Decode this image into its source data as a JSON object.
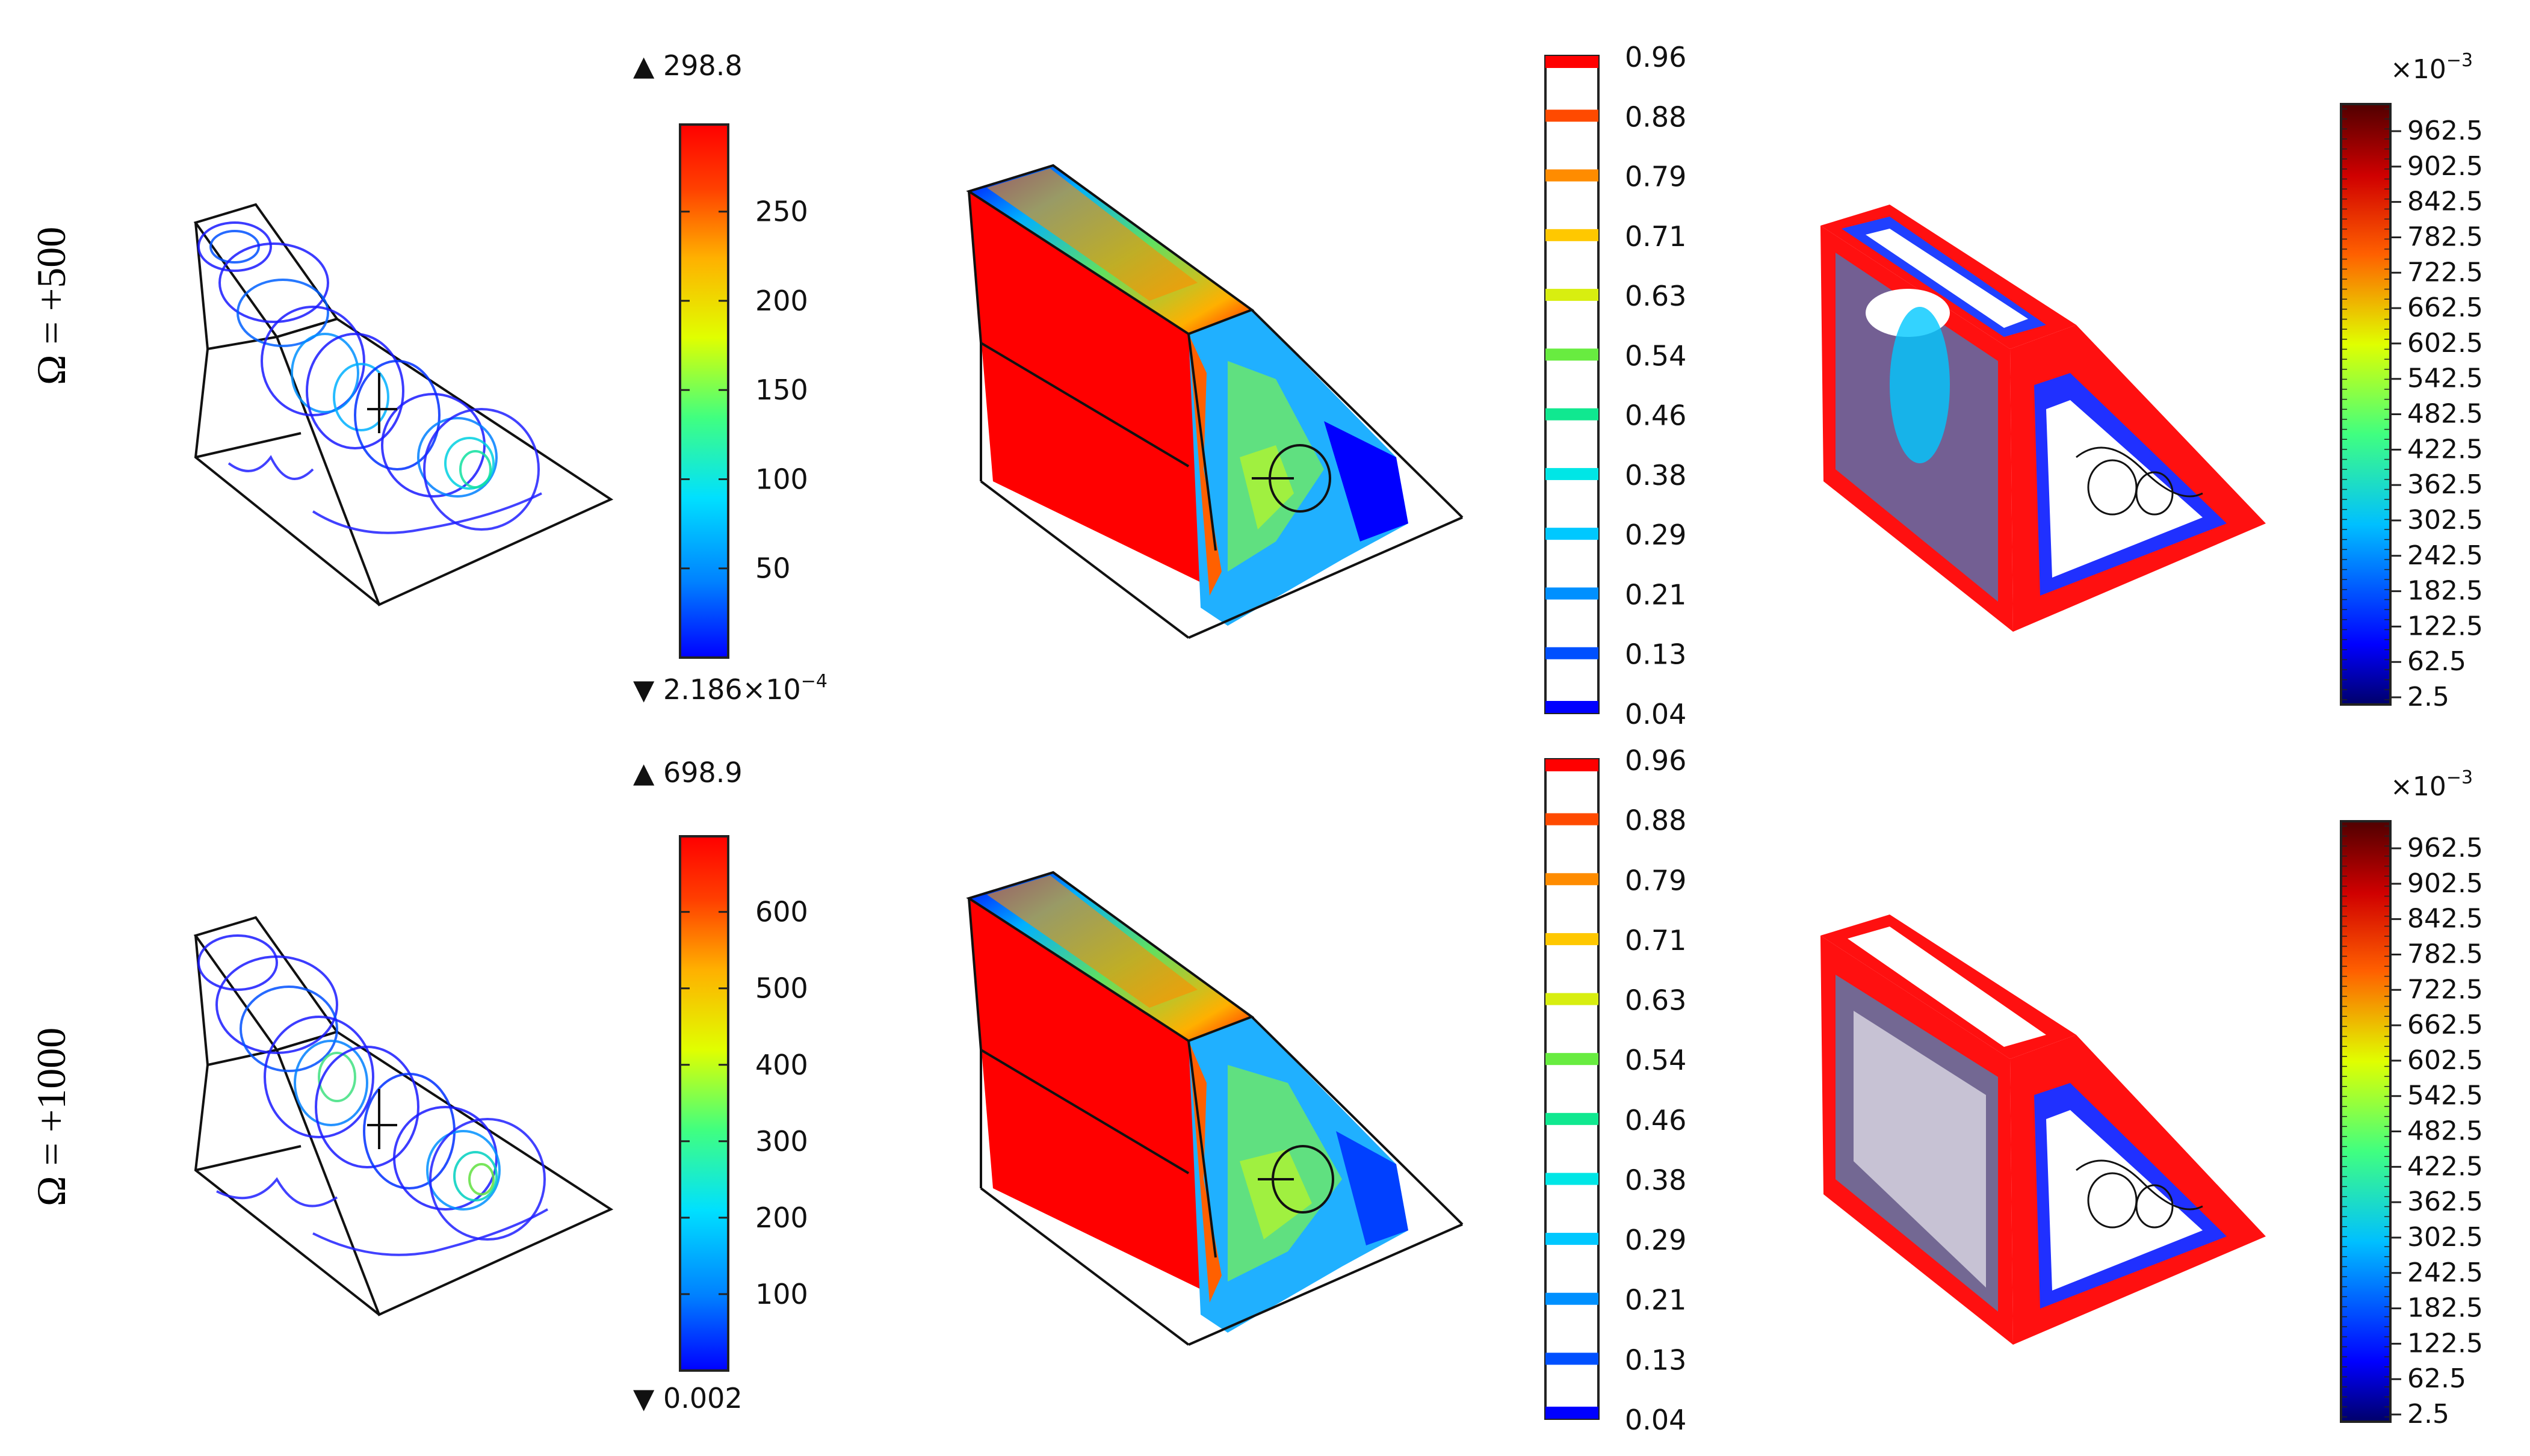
{
  "rows": [
    {
      "label": "Ω = +500",
      "streamline_legend": {
        "max_label": "▲ 298.8",
        "min_label": "▼ 2.186×10",
        "min_exponent": "−4",
        "ticks": [
          "250",
          "200",
          "150",
          "100",
          "50"
        ],
        "tick_values": [
          250,
          200,
          150,
          100,
          50
        ],
        "range": [
          0.0002186,
          298.8
        ]
      },
      "contour_legend": {
        "ticks": [
          "0.96",
          "0.88",
          "0.79",
          "0.71",
          "0.63",
          "0.54",
          "0.46",
          "0.38",
          "0.29",
          "0.21",
          "0.13",
          "0.04"
        ]
      },
      "surface_legend": {
        "multiplier": "×10",
        "multiplier_exponent": "−3",
        "ticks": [
          "962.5",
          "902.5",
          "842.5",
          "782.5",
          "722.5",
          "662.5",
          "602.5",
          "542.5",
          "482.5",
          "422.5",
          "362.5",
          "302.5",
          "242.5",
          "182.5",
          "122.5",
          "62.5",
          "2.5"
        ]
      }
    },
    {
      "label": "Ω = +1000",
      "streamline_legend": {
        "max_label": "▲ 698.9",
        "min_label": "▼ 0.002",
        "min_exponent": "",
        "ticks": [
          "600",
          "500",
          "400",
          "300",
          "200",
          "100"
        ],
        "tick_values": [
          600,
          500,
          400,
          300,
          200,
          100
        ],
        "range": [
          0.002,
          698.9
        ]
      },
      "contour_legend": {
        "ticks": [
          "0.96",
          "0.88",
          "0.79",
          "0.71",
          "0.63",
          "0.54",
          "0.46",
          "0.38",
          "0.29",
          "0.21",
          "0.13",
          "0.04"
        ]
      },
      "surface_legend": {
        "multiplier": "×10",
        "multiplier_exponent": "−3",
        "ticks": [
          "962.5",
          "902.5",
          "842.5",
          "782.5",
          "722.5",
          "662.5",
          "602.5",
          "542.5",
          "482.5",
          "422.5",
          "362.5",
          "302.5",
          "242.5",
          "182.5",
          "122.5",
          "62.5",
          "2.5"
        ]
      }
    }
  ],
  "colormap": {
    "jet": [
      "#0000ff",
      "#0080ff",
      "#00e0ff",
      "#40ff80",
      "#e0ff00",
      "#ffb000",
      "#ff4000",
      "#ff0000"
    ],
    "dark_jet": [
      "#00006a",
      "#0000ff",
      "#00c0ff",
      "#40ff80",
      "#e0ff00",
      "#ff6000",
      "#d00000",
      "#500000"
    ],
    "contour_levels": [
      "#ff0000",
      "#ff4a00",
      "#ff8c00",
      "#ffc800",
      "#d8ee10",
      "#68ec40",
      "#10e890",
      "#00e6e6",
      "#00c8ff",
      "#0090ff",
      "#0050ff",
      "#0000ff"
    ]
  }
}
